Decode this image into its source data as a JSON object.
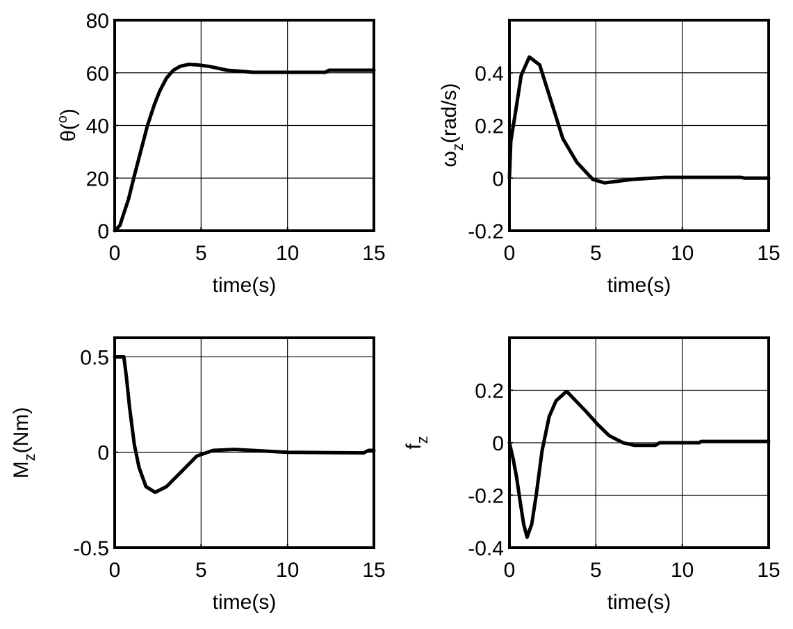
{
  "chart_data": [
    {
      "type": "line",
      "ylabel": {
        "main": "θ(",
        "sup": "o",
        "rest": ")"
      },
      "xlabel": "time(s)",
      "xlim": [
        0,
        15
      ],
      "ylim": [
        0,
        80
      ],
      "xticks": [
        0,
        5,
        10,
        15
      ],
      "yticks": [
        0,
        20,
        40,
        60,
        80
      ],
      "grid": true,
      "x": [
        0,
        0.3,
        0.5,
        0.8,
        1.1,
        1.5,
        1.9,
        2.3,
        2.6,
        3.0,
        3.4,
        3.8,
        4.3,
        4.8,
        5.5,
        6.5,
        8,
        10,
        12.2,
        12.4,
        15
      ],
      "y": [
        0,
        2,
        6,
        12,
        20,
        30,
        40,
        48,
        53,
        58,
        61,
        62.5,
        63.2,
        63,
        62.4,
        61,
        60.2,
        60.2,
        60.2,
        61,
        61
      ]
    },
    {
      "type": "line",
      "ylabel": {
        "main": "ω",
        "sub": "z",
        "rest": "(rad/s)"
      },
      "xlabel": "time(s)",
      "xlim": [
        0,
        15
      ],
      "ylim": [
        -0.2,
        0.6
      ],
      "xticks": [
        0,
        5,
        10,
        15
      ],
      "yticks": [
        -0.2,
        0,
        0.2,
        0.4
      ],
      "grid": true,
      "x": [
        0,
        0.08,
        0.35,
        0.68,
        1.15,
        1.75,
        2.42,
        3.09,
        3.9,
        4.82,
        5.5,
        7.1,
        9,
        13.4,
        13.6,
        15
      ],
      "y": [
        0,
        0.14,
        0.25,
        0.39,
        0.46,
        0.43,
        0.29,
        0.15,
        0.06,
        -0.005,
        -0.018,
        -0.005,
        0.003,
        0.003,
        0,
        0
      ]
    },
    {
      "type": "line",
      "ylabel": {
        "main": "M",
        "sub": "z",
        "rest": "(Nm)"
      },
      "xlabel": "time(s)",
      "xlim": [
        0,
        15
      ],
      "ylim": [
        -0.5,
        0.6
      ],
      "xticks": [
        0,
        5,
        10,
        15
      ],
      "yticks": [
        -0.5,
        0,
        0.5
      ],
      "grid": true,
      "x": [
        0,
        0.53,
        0.67,
        0.87,
        1.14,
        1.41,
        1.81,
        2.34,
        3.0,
        3.82,
        4.75,
        5.7,
        6.9,
        10,
        14.4,
        14.7,
        15
      ],
      "y": [
        0.5,
        0.5,
        0.4,
        0.23,
        0.04,
        -0.08,
        -0.18,
        -0.21,
        -0.18,
        -0.105,
        -0.02,
        0.01,
        0.015,
        0,
        -0.003,
        0.01,
        0.01
      ]
    },
    {
      "type": "line",
      "ylabel": {
        "main": "f",
        "sub": "z",
        "rest": ""
      },
      "xlabel": "time(s)",
      "xlim": [
        0,
        15
      ],
      "ylim": [
        -0.4,
        0.4
      ],
      "xticks": [
        0,
        5,
        10,
        15
      ],
      "yticks": [
        -0.4,
        -0.2,
        0,
        0.2
      ],
      "grid": true,
      "x": [
        0,
        0.21,
        0.41,
        0.61,
        0.82,
        1.02,
        1.29,
        1.55,
        1.89,
        2.3,
        2.7,
        3.29,
        3.4,
        4.42,
        5.1,
        5.77,
        6.57,
        7.24,
        8.45,
        8.7,
        10.98,
        11.1,
        15
      ],
      "y": [
        0,
        -0.06,
        -0.13,
        -0.22,
        -0.31,
        -0.36,
        -0.31,
        -0.2,
        -0.03,
        0.1,
        0.16,
        0.195,
        0.19,
        0.12,
        0.07,
        0.027,
        0,
        -0.01,
        -0.01,
        0,
        0,
        0.005,
        0.005
      ]
    }
  ]
}
